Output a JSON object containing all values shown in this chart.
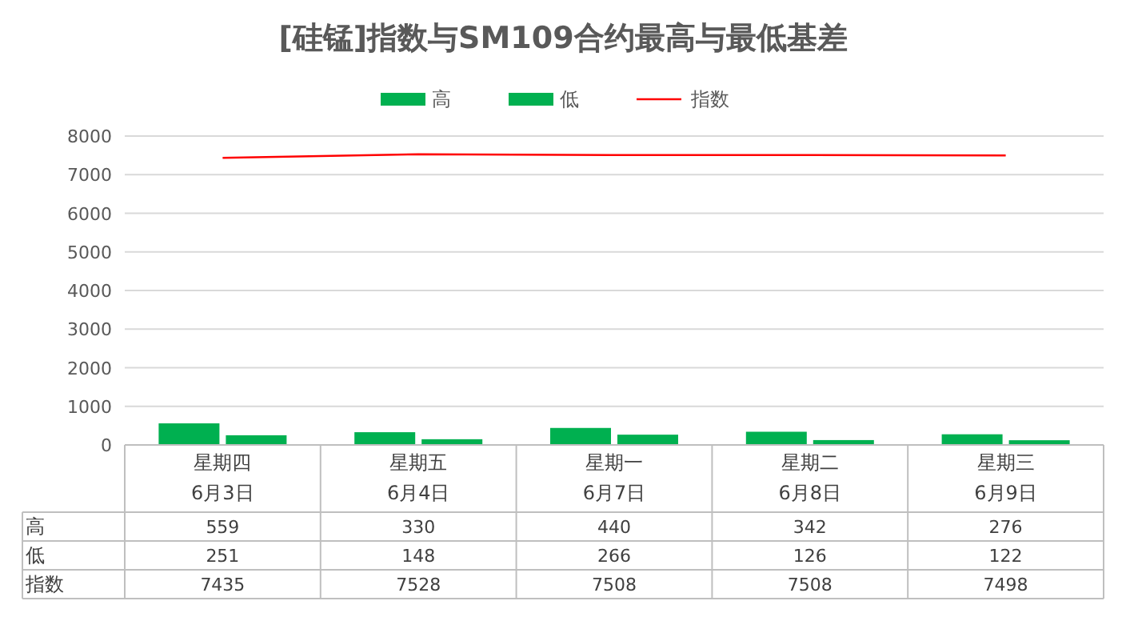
{
  "chart_data": {
    "type": "bar",
    "title": "[硅锰]指数与SM109合约最高与最低基差",
    "categories": [
      "星期四\n6月3日",
      "星期五\n6月4日",
      "星期一\n6月7日",
      "星期二\n6月8日",
      "星期三\n6月9日"
    ],
    "series": [
      {
        "name": "高",
        "color": "#00b050",
        "values": [
          559,
          330,
          440,
          342,
          276
        ]
      },
      {
        "name": "低",
        "color": "#00b050",
        "values": [
          251,
          148,
          266,
          126,
          122
        ]
      },
      {
        "name": "指数",
        "type": "line",
        "color": "#ff0000",
        "values": [
          7435,
          7528,
          7508,
          7508,
          7498
        ]
      }
    ],
    "ylim": [
      0,
      8000
    ],
    "yticks": [
      0,
      1000,
      2000,
      3000,
      4000,
      5000,
      6000,
      7000,
      8000
    ],
    "grid": "y",
    "legend": "top",
    "data_labels": true,
    "marker": "none"
  }
}
